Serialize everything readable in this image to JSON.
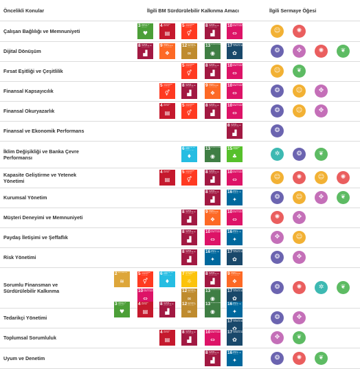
{
  "headers": {
    "topic": "Öncelikli Konular",
    "sdg": "İlgili BM Sürdürülebilir Kalkınma Amacı",
    "capital": "İlgili Sermaye Öğesi"
  },
  "sdg_goals": {
    "2": {
      "num": "2",
      "label": "AÇLIĞA SON",
      "color": "#DDA63A",
      "icon": "food-bowl-icon"
    },
    "3": {
      "num": "3",
      "label": "SAĞLIK VE KALİTELİ YAŞAM",
      "color": "#4C9F38",
      "icon": "heartbeat-icon"
    },
    "4": {
      "num": "4",
      "label": "NİTELİKLİ EĞİTİM",
      "color": "#C5192D",
      "icon": "book-icon"
    },
    "5": {
      "num": "5",
      "label": "TOPLUMSAL CİNSİYET EŞİTLİĞİ",
      "color": "#FF3A21",
      "icon": "gender-icon"
    },
    "6": {
      "num": "6",
      "label": "TEMİZ SU VE SIHHİ KOŞULLAR",
      "color": "#26BDE2",
      "icon": "water-drop-icon"
    },
    "7": {
      "num": "7",
      "label": "ERİŞİLEBİLİR VE TEMİZ ENERJİ",
      "color": "#FCC30B",
      "icon": "sun-icon"
    },
    "8": {
      "num": "8",
      "label": "İNSANA YAKIŞIR İŞ VE EKONOMİK BÜYÜME",
      "color": "#A21942",
      "icon": "growth-chart-icon"
    },
    "9": {
      "num": "9",
      "label": "SANAYİ, YENİLİKÇİLİK VE ALTYAPI",
      "color": "#FD6925",
      "icon": "cubes-icon"
    },
    "10": {
      "num": "10",
      "label": "EŞİTSİZLİKLERİN AZALTILMASI",
      "color": "#DD1367",
      "icon": "equality-icon"
    },
    "12": {
      "num": "12",
      "label": "SORUMLU ÜRETİM VE TÜKETİM",
      "color": "#BF8B2E",
      "icon": "infinity-icon"
    },
    "13": {
      "num": "13",
      "label": "İKLİM EYLEMİ",
      "color": "#3F7E44",
      "icon": "eye-icon"
    },
    "15": {
      "num": "15",
      "label": "KARASAL YAŞAM",
      "color": "#56C02B",
      "icon": "tree-icon"
    },
    "16": {
      "num": "16",
      "label": "BARIŞ, ADALET VE GÜÇLÜ KURUMLAR",
      "color": "#00689D",
      "icon": "dove-icon"
    },
    "17": {
      "num": "17",
      "label": "AMAÇLAR İÇİN ORTAKLIKLAR",
      "color": "#19486A",
      "icon": "flower-icon"
    }
  },
  "capitals": {
    "insan": {
      "name": "insan-capital",
      "color": "#F2B134",
      "icon": "people-icon"
    },
    "entelektuel": {
      "name": "intellectual-capital",
      "color": "#EA5E5E",
      "icon": "lightbulb-icon"
    },
    "finansal": {
      "name": "financial-capital",
      "color": "#6B64B0",
      "icon": "coins-icon"
    },
    "sosyal": {
      "name": "social-capital",
      "color": "#C46FB8",
      "icon": "handshake-icon"
    },
    "dogal": {
      "name": "natural-capital",
      "color": "#5DBB63",
      "icon": "leaf-icon"
    },
    "uretilmis": {
      "name": "manufactured-capital",
      "color": "#3DB9B2",
      "icon": "gear-icon"
    }
  },
  "rows": [
    {
      "label": "Çalışan Bağlılığı ve Memnuniyeti",
      "sdgs": [
        "3",
        "4",
        "5",
        "8",
        "10"
      ],
      "capitals": [
        "insan",
        "entelektuel"
      ]
    },
    {
      "label": "Dijital Dönüşüm",
      "sdgs": [
        "8",
        "9",
        "12",
        "13",
        "17"
      ],
      "capitals": [
        "finansal",
        "sosyal",
        "entelektuel",
        "dogal"
      ]
    },
    {
      "label": "Fırsat Eşitliği ve Çeşitlilik",
      "sdgs": [
        "5",
        "8",
        "10"
      ],
      "capitals": [
        "insan",
        "dogal"
      ]
    },
    {
      "label": "Finansal Kapsayıcılık",
      "sdgs": [
        "5",
        "8",
        "9",
        "10"
      ],
      "capitals": [
        "finansal",
        "insan",
        "sosyal"
      ]
    },
    {
      "label": "Finansal Okuryazarlık",
      "sdgs": [
        "4",
        "5",
        "8",
        "10"
      ],
      "capitals": [
        "finansal",
        "insan",
        "sosyal"
      ]
    },
    {
      "label": "Finansal ve Ekonomik Performans",
      "sdgs": [
        "8"
      ],
      "capitals": [
        "finansal"
      ]
    },
    {
      "label": "İklim Değişikliği ve Banka Çevre Performansı",
      "sdgs": [
        "6",
        "13",
        "15"
      ],
      "capitals": [
        "uretilmis",
        "finansal",
        "dogal"
      ]
    },
    {
      "label": "Kapasite Geliştirme ve Yetenek Yönetimi",
      "sdgs": [
        "4",
        "5",
        "8",
        "10"
      ],
      "capitals": [
        "insan",
        "entelektuel",
        "insan",
        "entelektuel"
      ]
    },
    {
      "label": "Kurumsal Yönetim",
      "sdgs": [
        "8",
        "16"
      ],
      "capitals": [
        "finansal",
        "insan",
        "sosyal",
        "dogal"
      ]
    },
    {
      "label": "Müşteri Deneyimi ve Memnuniyeti",
      "sdgs": [
        "8",
        "9",
        "10"
      ],
      "capitals": [
        "entelektuel",
        "sosyal"
      ]
    },
    {
      "label": "Paydaş İletişimi ve Şeffaflık",
      "sdgs": [
        "8",
        "10",
        "16"
      ],
      "capitals": [
        "sosyal",
        "insan"
      ]
    },
    {
      "label": "Risk Yönetimi",
      "sdgs": [
        "8",
        "16",
        "17"
      ],
      "capitals": [
        "finansal",
        "sosyal"
      ]
    },
    {
      "label": "Sorumlu Finansman ve Sürdürülebilir Kalkınma",
      "sdgs": [
        "2",
        "5",
        "6",
        "7",
        "8",
        "9",
        "10",
        "12",
        "13",
        "17"
      ],
      "capitals": [
        "finansal",
        "entelektuel",
        "uretilmis",
        "dogal"
      ]
    },
    {
      "label": "Tedarikçi Yönetimi",
      "sdgs": [
        "3",
        "4",
        "8",
        "12",
        "13",
        "16",
        "17"
      ],
      "capitals": [
        "finansal",
        "sosyal"
      ]
    },
    {
      "label": "Toplumsal Sorumluluk",
      "sdgs": [
        "4",
        "8",
        "10",
        "17"
      ],
      "capitals": [
        "sosyal",
        "dogal"
      ]
    },
    {
      "label": "Uyum ve Denetim",
      "sdgs": [
        "8",
        "16"
      ],
      "capitals": [
        "finansal",
        "entelektuel",
        "dogal"
      ]
    }
  ]
}
